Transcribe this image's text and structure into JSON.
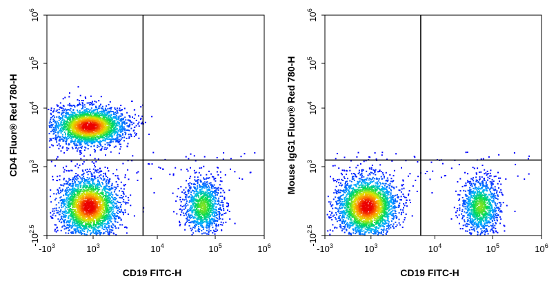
{
  "chart_data": [
    {
      "type": "scatter",
      "xlabel": "CD19 FITC-H",
      "ylabel": "CD4 Fluor® Red 780-H",
      "x_scale": "biexponential",
      "y_scale": "biexponential",
      "x_ticks": [
        {
          "base": "-10",
          "exp": "3"
        },
        {
          "base": "10",
          "exp": "3"
        },
        {
          "base": "10",
          "exp": "4"
        },
        {
          "base": "10",
          "exp": "5"
        },
        {
          "base": "10",
          "exp": "6"
        }
      ],
      "y_ticks": [
        {
          "base": "-10",
          "exp": "2.5"
        },
        {
          "base": "10",
          "exp": "3"
        },
        {
          "base": "10",
          "exp": "4"
        },
        {
          "base": "10",
          "exp": "5"
        },
        {
          "base": "10",
          "exp": "6"
        }
      ],
      "quadrant_gate": {
        "x": 6000,
        "y": 1300
      },
      "colormap": "density (blue-green-yellow-red)",
      "populations": [
        {
          "x": 800,
          "y": 5000,
          "density": "high"
        },
        {
          "x": 800,
          "y": 250,
          "density": "high"
        },
        {
          "x": 60000,
          "y": 250,
          "density": "medium"
        }
      ]
    },
    {
      "type": "scatter",
      "xlabel": "CD19 FITC-H",
      "ylabel": "Mouse IgG1 Fluor® Red 780-H",
      "x_scale": "biexponential",
      "y_scale": "biexponential",
      "x_ticks": [
        {
          "base": "-10",
          "exp": "3"
        },
        {
          "base": "10",
          "exp": "3"
        },
        {
          "base": "10",
          "exp": "4"
        },
        {
          "base": "10",
          "exp": "5"
        },
        {
          "base": "10",
          "exp": "6"
        }
      ],
      "y_ticks": [
        {
          "base": "-10",
          "exp": "2.5"
        },
        {
          "base": "10",
          "exp": "3"
        },
        {
          "base": "10",
          "exp": "4"
        },
        {
          "base": "10",
          "exp": "5"
        },
        {
          "base": "10",
          "exp": "6"
        }
      ],
      "quadrant_gate": {
        "x": 6000,
        "y": 1300
      },
      "colormap": "density (blue-green-yellow-red)",
      "populations": [
        {
          "x": 800,
          "y": 250,
          "density": "high"
        },
        {
          "x": 60000,
          "y": 250,
          "density": "medium"
        }
      ]
    }
  ]
}
